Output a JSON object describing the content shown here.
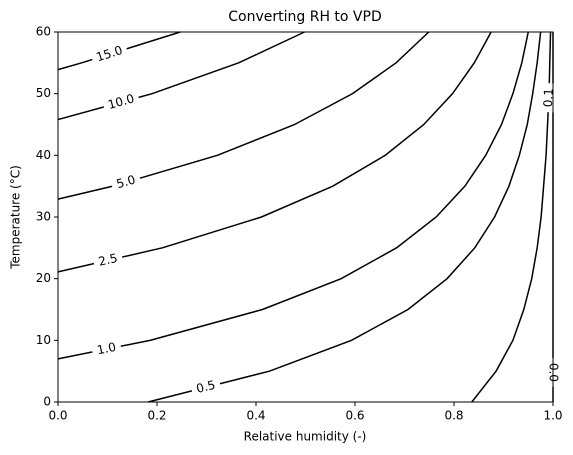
{
  "chart_data": {
    "type": "contour",
    "title": "Converting RH to VPD",
    "xlabel": "Relative humidity (-)",
    "ylabel": "Temperature (°C)",
    "xlim": [
      0,
      1
    ],
    "ylim": [
      0,
      60
    ],
    "xticks": [
      {
        "value": 0,
        "label": "0.0"
      },
      {
        "value": 0.2,
        "label": "0.2"
      },
      {
        "value": 0.4,
        "label": "0.4"
      },
      {
        "value": 0.6,
        "label": "0.6"
      },
      {
        "value": 0.8,
        "label": "0.8"
      },
      {
        "value": 1,
        "label": "1.0"
      }
    ],
    "yticks": [
      0,
      10,
      20,
      30,
      40,
      50,
      60
    ],
    "color": "#000000",
    "series": [
      {
        "name": "15.0",
        "x": [
          0,
          0.048,
          0.247
        ],
        "y": [
          53.9,
          55,
          60
        ]
      },
      {
        "name": "10.0",
        "x": [
          0,
          0.19,
          0.365,
          0.498
        ],
        "y": [
          45.8,
          50,
          55,
          60
        ]
      },
      {
        "name": "5.0",
        "x": [
          0,
          0.111,
          0.322,
          0.478,
          0.595,
          0.683,
          0.749
        ],
        "y": [
          32.9,
          35,
          40,
          45,
          50,
          55,
          60
        ]
      },
      {
        "name": "2.5",
        "x": [
          0,
          0.211,
          0.411,
          0.555,
          0.661,
          0.739,
          0.797,
          0.841,
          0.875
        ],
        "y": [
          21.1,
          25,
          30,
          35,
          40,
          45,
          50,
          55,
          60
        ]
      },
      {
        "name": "1.0",
        "x": [
          0,
          0.186,
          0.413,
          0.572,
          0.684,
          0.764,
          0.822,
          0.864,
          0.896,
          0.919,
          0.937,
          0.95
        ],
        "y": [
          7,
          10,
          15,
          20,
          25,
          30,
          35,
          40,
          45,
          50,
          55,
          60
        ]
      },
      {
        "name": "0.5",
        "x": [
          0.182,
          0.427,
          0.593,
          0.707,
          0.786,
          0.842,
          0.882,
          0.911,
          0.932,
          0.948,
          0.959,
          0.968,
          0.975
        ],
        "y": [
          0,
          5,
          10,
          15,
          20,
          25,
          30,
          35,
          40,
          45,
          50,
          55,
          60
        ]
      },
      {
        "name": "0.1",
        "x": [
          0.836,
          0.885,
          0.919,
          0.941,
          0.957,
          0.968,
          0.976,
          0.986,
          0.992,
          0.995
        ],
        "y": [
          0,
          5,
          10,
          15,
          20,
          25,
          30,
          40,
          50,
          60
        ]
      },
      {
        "name": "0.0",
        "x": [
          1,
          1
        ],
        "y": [
          0,
          60
        ]
      }
    ]
  }
}
